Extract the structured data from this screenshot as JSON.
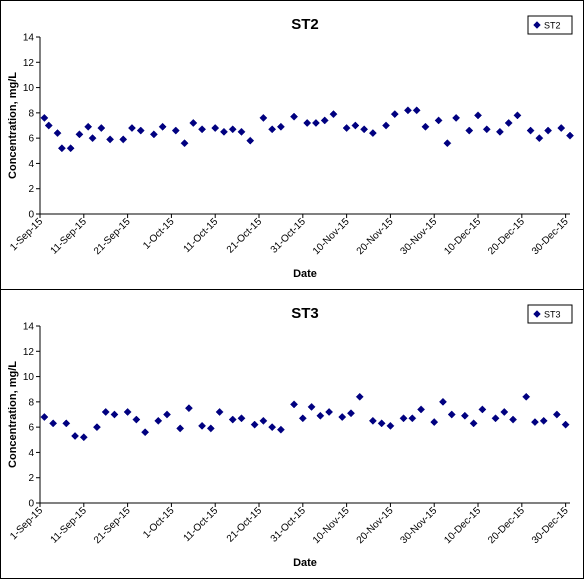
{
  "chart_data": [
    {
      "type": "scatter",
      "title": "ST2",
      "xlabel": "Date",
      "ylabel": "Concentration, mg/L",
      "ylim": [
        0,
        14
      ],
      "yticks": [
        "0",
        "2",
        "4",
        "6",
        "8",
        "10",
        "12",
        "14"
      ],
      "xticks": [
        "1-Sep-15",
        "11-Sep-15",
        "21-Sep-15",
        "1-Oct-15",
        "11-Oct-15",
        "21-Oct-15",
        "31-Oct-15",
        "10-Nov-15",
        "20-Nov-15",
        "30-Nov-15",
        "10-Dec-15",
        "20-Dec-15",
        "30-Dec-15"
      ],
      "xlim": [
        "2015-09-01",
        "2015-12-31"
      ],
      "grid": false,
      "legend_position": "top-right",
      "marker_color": "#000080",
      "series": [
        {
          "name": "ST2",
          "x": [
            "2015-09-02",
            "2015-09-03",
            "2015-09-05",
            "2015-09-06",
            "2015-09-08",
            "2015-09-10",
            "2015-09-12",
            "2015-09-13",
            "2015-09-15",
            "2015-09-17",
            "2015-09-20",
            "2015-09-22",
            "2015-09-24",
            "2015-09-27",
            "2015-09-29",
            "2015-10-02",
            "2015-10-04",
            "2015-10-06",
            "2015-10-08",
            "2015-10-11",
            "2015-10-13",
            "2015-10-15",
            "2015-10-17",
            "2015-10-19",
            "2015-10-22",
            "2015-10-24",
            "2015-10-26",
            "2015-10-29",
            "2015-11-01",
            "2015-11-03",
            "2015-11-05",
            "2015-11-07",
            "2015-11-10",
            "2015-11-12",
            "2015-11-14",
            "2015-11-16",
            "2015-11-19",
            "2015-11-21",
            "2015-11-24",
            "2015-11-26",
            "2015-11-28",
            "2015-12-01",
            "2015-12-03",
            "2015-12-05",
            "2015-12-08",
            "2015-12-10",
            "2015-12-12",
            "2015-12-15",
            "2015-12-17",
            "2015-12-19",
            "2015-12-22",
            "2015-12-24",
            "2015-12-26",
            "2015-12-29",
            "2015-12-31"
          ],
          "y": [
            7.6,
            7.0,
            6.4,
            5.2,
            5.2,
            6.3,
            6.9,
            6.0,
            6.8,
            5.9,
            5.9,
            6.8,
            6.6,
            6.3,
            6.9,
            6.6,
            5.6,
            7.2,
            6.7,
            6.8,
            6.5,
            6.7,
            6.5,
            5.8,
            7.6,
            6.7,
            6.9,
            7.7,
            7.2,
            7.2,
            7.4,
            7.9,
            6.8,
            7.0,
            6.7,
            6.4,
            7.0,
            7.9,
            8.2,
            8.2,
            6.9,
            7.4,
            5.6,
            7.6,
            6.6,
            7.8,
            6.7,
            6.5,
            7.2,
            7.8,
            6.6,
            6.0,
            6.6,
            6.8,
            6.2
          ]
        }
      ]
    },
    {
      "type": "scatter",
      "title": "ST3",
      "xlabel": "Date",
      "ylabel": "Concentration, mg/L",
      "ylim": [
        0,
        14
      ],
      "yticks": [
        "0",
        "2",
        "4",
        "6",
        "8",
        "10",
        "12",
        "14"
      ],
      "xticks": [
        "1-Sep-15",
        "11-Sep-15",
        "21-Sep-15",
        "1-Oct-15",
        "11-Oct-15",
        "21-Oct-15",
        "31-Oct-15",
        "10-Nov-15",
        "20-Nov-15",
        "30-Nov-15",
        "10-Dec-15",
        "20-Dec-15",
        "30-Dec-15"
      ],
      "xlim": [
        "2015-09-01",
        "2015-12-31"
      ],
      "grid": false,
      "legend_position": "top-right",
      "marker_color": "#000080",
      "series": [
        {
          "name": "ST3",
          "x": [
            "2015-09-02",
            "2015-09-04",
            "2015-09-07",
            "2015-09-09",
            "2015-09-11",
            "2015-09-14",
            "2015-09-16",
            "2015-09-18",
            "2015-09-21",
            "2015-09-23",
            "2015-09-25",
            "2015-09-28",
            "2015-09-30",
            "2015-10-03",
            "2015-10-05",
            "2015-10-08",
            "2015-10-10",
            "2015-10-12",
            "2015-10-15",
            "2015-10-17",
            "2015-10-20",
            "2015-10-22",
            "2015-10-24",
            "2015-10-26",
            "2015-10-29",
            "2015-10-31",
            "2015-11-02",
            "2015-11-04",
            "2015-11-06",
            "2015-11-09",
            "2015-11-11",
            "2015-11-13",
            "2015-11-16",
            "2015-11-18",
            "2015-11-20",
            "2015-11-23",
            "2015-11-25",
            "2015-11-27",
            "2015-11-30",
            "2015-12-02",
            "2015-12-04",
            "2015-12-07",
            "2015-12-09",
            "2015-12-11",
            "2015-12-14",
            "2015-12-16",
            "2015-12-18",
            "2015-12-21",
            "2015-12-23",
            "2015-12-25",
            "2015-12-28",
            "2015-12-30"
          ],
          "y": [
            6.8,
            6.3,
            6.3,
            5.3,
            5.2,
            6.0,
            7.2,
            7.0,
            7.2,
            6.6,
            5.6,
            6.5,
            7.0,
            5.9,
            7.5,
            6.1,
            5.9,
            7.2,
            6.6,
            6.7,
            6.2,
            6.5,
            6.0,
            5.8,
            7.8,
            6.7,
            7.6,
            6.9,
            7.2,
            6.8,
            7.1,
            8.4,
            6.5,
            6.3,
            6.1,
            6.7,
            6.7,
            7.4,
            6.4,
            8.0,
            7.0,
            6.9,
            6.3,
            7.4,
            6.7,
            7.2,
            6.6,
            8.4,
            6.4,
            6.5,
            7.0,
            6.2
          ]
        }
      ]
    }
  ]
}
